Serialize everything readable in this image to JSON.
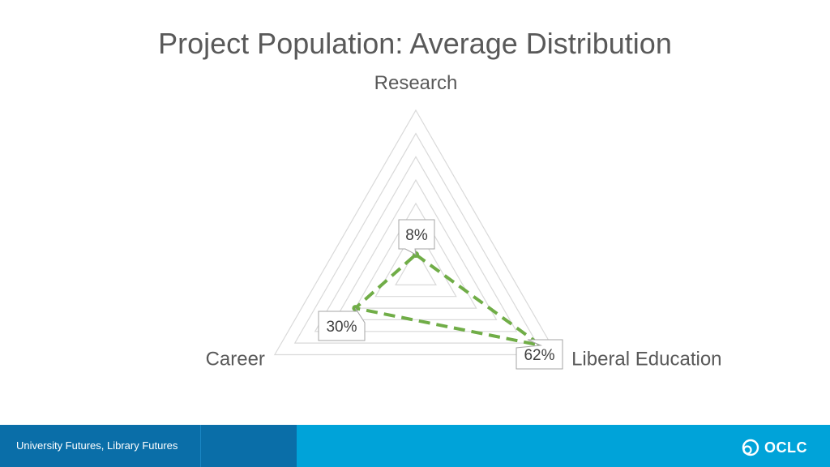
{
  "chart_data": {
    "type": "radar",
    "title": "Project Population: Average Distribution",
    "axes": [
      "Research",
      "Liberal Education",
      "Career"
    ],
    "values": [
      8,
      62,
      30
    ],
    "value_labels": [
      "8%",
      "62%",
      "30%"
    ],
    "range": [
      0,
      70
    ],
    "grid_levels": 7,
    "series_color": "#70ad47"
  },
  "footer": {
    "text": "University Futures, Library Futures",
    "logo_text": "OCLC"
  }
}
